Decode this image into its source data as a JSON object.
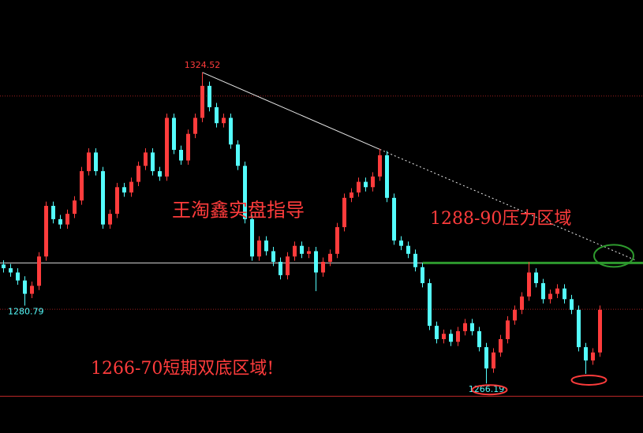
{
  "chart_data": {
    "type": "candlestick",
    "up_color": "#ff3c3c",
    "down_color": "#54fcfc",
    "ylim": [
      1256.9,
      1338.1
    ],
    "open": [
      1288.5,
      1287.8,
      1287.0,
      1285.5,
      1283,
      1284.5,
      1290,
      1299.5,
      1297,
      1296,
      1298,
      1300.5,
      1306,
      1309.5,
      1306,
      1296,
      1298,
      1303,
      1302,
      1304,
      1307,
      1309.5,
      1306,
      1305,
      1316,
      1310,
      1308,
      1313,
      1316,
      1322,
      1318,
      1315,
      1316,
      1311,
      1307,
      1297,
      1290,
      1293,
      1291,
      1289,
      1286.5,
      1290,
      1292,
      1290.5,
      1291,
      1287,
      1289,
      1290.5,
      1295.5,
      1301,
      1302,
      1304,
      1303,
      1305,
      1309,
      1301,
      1293,
      1292,
      1290.5,
      1288,
      1285,
      1277,
      1274.5,
      1275.5,
      1274,
      1276,
      1277.5,
      1276,
      1273,
      1269,
      1272,
      1274.5,
      1278,
      1280,
      1282.5,
      1287,
      1285,
      1282,
      1283,
      1284,
      1282,
      1280,
      1273,
      1270.5,
      1272
    ],
    "high": [
      1289.3,
      1288.6,
      1287.8,
      1286.3,
      1285.3,
      1290.8,
      1300.3,
      1300.3,
      1297.8,
      1298.8,
      1301.3,
      1306.8,
      1310.3,
      1310.3,
      1306.8,
      1298.8,
      1303.8,
      1303.8,
      1304.8,
      1307.8,
      1310.3,
      1310.3,
      1306.8,
      1316.8,
      1316.8,
      1310.8,
      1313.8,
      1316.8,
      1324.52,
      1322.8,
      1318.8,
      1316.8,
      1316.8,
      1311.8,
      1307.8,
      1297.8,
      1293.8,
      1293.8,
      1291.8,
      1289.8,
      1290.8,
      1292.8,
      1292.8,
      1291.8,
      1291.8,
      1289.8,
      1291.3,
      1296.3,
      1301.8,
      1302.8,
      1304.8,
      1304.8,
      1305.8,
      1310.2,
      1309.8,
      1301.8,
      1293.8,
      1292.8,
      1291.3,
      1288.8,
      1285.8,
      1277.8,
      1276.3,
      1276.3,
      1276.8,
      1278.3,
      1278.3,
      1276.8,
      1273.8,
      1272.8,
      1275.3,
      1278.8,
      1280.8,
      1283.3,
      1289.0,
      1287.8,
      1285.8,
      1283.8,
      1284.8,
      1284.8,
      1282.8,
      1280.8,
      1273.8,
      1272.8,
      1280.8
    ],
    "low": [
      1287.0,
      1286.2,
      1284.7,
      1280.79,
      1282.2,
      1283.7,
      1289.2,
      1296.2,
      1295.2,
      1295.2,
      1297.2,
      1299.7,
      1305.2,
      1305.2,
      1295.2,
      1295.2,
      1297.2,
      1301.2,
      1301.2,
      1303.2,
      1306.2,
      1305.2,
      1304.2,
      1304.2,
      1309.2,
      1307.2,
      1307.2,
      1312.2,
      1315.2,
      1317.2,
      1314.2,
      1314.2,
      1310.2,
      1306.2,
      1296.2,
      1289.2,
      1289.2,
      1290.2,
      1288.2,
      1285.7,
      1285.7,
      1289.2,
      1289.7,
      1289.7,
      1283.5,
      1286.2,
      1288.2,
      1289.7,
      1294.7,
      1300.2,
      1301.2,
      1302.2,
      1302.2,
      1304.2,
      1300.2,
      1292.2,
      1291.2,
      1289.7,
      1287.2,
      1284.2,
      1276.2,
      1273.7,
      1273.7,
      1273.2,
      1273.2,
      1275.2,
      1275.2,
      1272.2,
      1266.19,
      1268.2,
      1271.2,
      1273.7,
      1277.2,
      1279.2,
      1281.7,
      1284.2,
      1281.2,
      1281.2,
      1282.2,
      1281.2,
      1279.2,
      1272.2,
      1268.0,
      1269.7,
      1271.2
    ],
    "close": [
      1287.8,
      1287.0,
      1285.5,
      1283,
      1284.5,
      1290,
      1299.5,
      1297,
      1296,
      1298,
      1300.5,
      1306,
      1309.5,
      1306,
      1296,
      1298,
      1303,
      1302,
      1304,
      1307,
      1309.5,
      1306,
      1305,
      1316,
      1310,
      1308,
      1313,
      1316,
      1322,
      1318,
      1315,
      1316,
      1311,
      1307,
      1297,
      1290,
      1293,
      1291,
      1289,
      1286.5,
      1290,
      1292,
      1290.5,
      1291,
      1287,
      1289,
      1290.5,
      1295.5,
      1301,
      1302,
      1304,
      1303,
      1305,
      1309,
      1301,
      1293,
      1292,
      1290.5,
      1288,
      1285,
      1277,
      1274.5,
      1275.5,
      1274,
      1276,
      1277.5,
      1276,
      1273,
      1269,
      1272,
      1274.5,
      1278,
      1280,
      1282.5,
      1287,
      1285,
      1282,
      1283,
      1284,
      1282,
      1280,
      1273,
      1270.5,
      1272,
      1280
    ],
    "levels": [
      {
        "price": 1320.1,
        "color": "#a02020",
        "style": "dotted"
      },
      {
        "price": 1288.8,
        "color": "#d8d8d8",
        "style": "solid"
      },
      {
        "price": 1280.1,
        "color": "#a02020",
        "style": "dotted"
      },
      {
        "price": 1263.8,
        "color": "#c02828",
        "style": "solid"
      }
    ],
    "resistance": {
      "price": 1288.8,
      "from_index": 59,
      "color": "#2e9a2e"
    },
    "trendline": {
      "from_index": 28,
      "from_price": 1324.52,
      "to_index": 89,
      "to_price": 1289.3,
      "dashed_from_index": 53,
      "color": "#e8e8e8"
    },
    "annotations": [
      "王淘鑫实盘指导",
      "1288-90压力区域",
      "1266-70短期双底区域!"
    ]
  }
}
